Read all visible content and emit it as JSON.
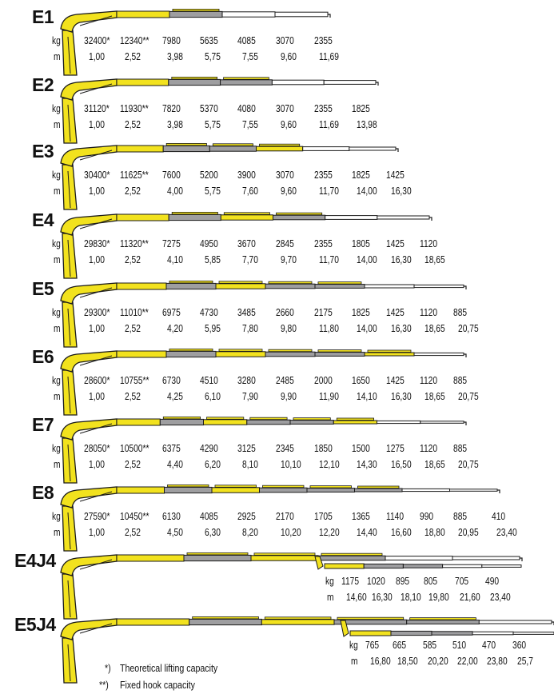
{
  "colors": {
    "yellow": "#f2e21e",
    "grey": "#9e9ea0",
    "outline": "#1a1a1a"
  },
  "units": {
    "kg": "kg",
    "m": "m"
  },
  "configurations": [
    {
      "name": "E1",
      "kg": [
        "32400*",
        "12340**",
        "7980",
        "5635",
        "4085",
        "3070",
        "2355"
      ],
      "m": [
        "1,00",
        "2,52",
        "3,98",
        "5,75",
        "7,55",
        "9,60",
        "11,69"
      ]
    },
    {
      "name": "E2",
      "kg": [
        "31120*",
        "11930**",
        "7820",
        "5370",
        "4080",
        "3070",
        "2355",
        "1825"
      ],
      "m": [
        "1,00",
        "2,52",
        "3,98",
        "5,75",
        "7,55",
        "9,60",
        "11,69",
        "13,98"
      ]
    },
    {
      "name": "E3",
      "kg": [
        "30400*",
        "11625**",
        "7600",
        "5200",
        "3900",
        "3070",
        "2355",
        "1825",
        "1425"
      ],
      "m": [
        "1,00",
        "2,52",
        "4,00",
        "5,75",
        "7,60",
        "9,60",
        "11,70",
        "14,00",
        "16,30"
      ]
    },
    {
      "name": "E4",
      "kg": [
        "29830*",
        "11320**",
        "7275",
        "4950",
        "3670",
        "2845",
        "2355",
        "1805",
        "1425",
        "1120"
      ],
      "m": [
        "1,00",
        "2,52",
        "4,10",
        "5,85",
        "7,70",
        "9,70",
        "11,70",
        "14,00",
        "16,30",
        "18,65"
      ]
    },
    {
      "name": "E5",
      "kg": [
        "29300*",
        "11010**",
        "6975",
        "4730",
        "3485",
        "2660",
        "2175",
        "1825",
        "1425",
        "1120",
        "885"
      ],
      "m": [
        "1,00",
        "2,52",
        "4,20",
        "5,95",
        "7,80",
        "9,80",
        "11,80",
        "14,00",
        "16,30",
        "18,65",
        "20,75"
      ]
    },
    {
      "name": "E6",
      "kg": [
        "28600*",
        "10755**",
        "6730",
        "4510",
        "3280",
        "2485",
        "2000",
        "1650",
        "1425",
        "1120",
        "885"
      ],
      "m": [
        "1,00",
        "2,52",
        "4,25",
        "6,10",
        "7,90",
        "9,90",
        "11,90",
        "14,10",
        "16,30",
        "18,65",
        "20,75"
      ]
    },
    {
      "name": "E7",
      "kg": [
        "28050*",
        "10500**",
        "6375",
        "4290",
        "3125",
        "2345",
        "1850",
        "1500",
        "1275",
        "1120",
        "885"
      ],
      "m": [
        "1,00",
        "2,52",
        "4,40",
        "6,20",
        "8,10",
        "10,10",
        "12,10",
        "14,30",
        "16,50",
        "18,65",
        "20,75"
      ]
    },
    {
      "name": "E8",
      "kg": [
        "27590*",
        "10450**",
        "6130",
        "4085",
        "2925",
        "2170",
        "1705",
        "1365",
        "1140",
        "990",
        "885",
        "410"
      ],
      "m": [
        "1,00",
        "2,52",
        "4,50",
        "6,30",
        "8,20",
        "10,20",
        "12,20",
        "14,40",
        "16,60",
        "18,80",
        "20,95",
        "23,40"
      ]
    },
    {
      "name": "E4J4",
      "kg": [
        "1175",
        "1020",
        "895",
        "805",
        "705",
        "490"
      ],
      "m": [
        "14,60",
        "16,30",
        "18,10",
        "19,80",
        "21,60",
        "23,40"
      ]
    },
    {
      "name": "E5J4",
      "kg": [
        "765",
        "665",
        "585",
        "510",
        "470",
        "360"
      ],
      "m": [
        "16,80",
        "18,50",
        "20,20",
        "22,00",
        "23,80",
        "25,7"
      ]
    }
  ],
  "footnotes": [
    {
      "mark": "*)",
      "text": "Theoretical lifting capacity"
    },
    {
      "mark": "**)",
      "text": "Fixed hook capacity"
    }
  ]
}
